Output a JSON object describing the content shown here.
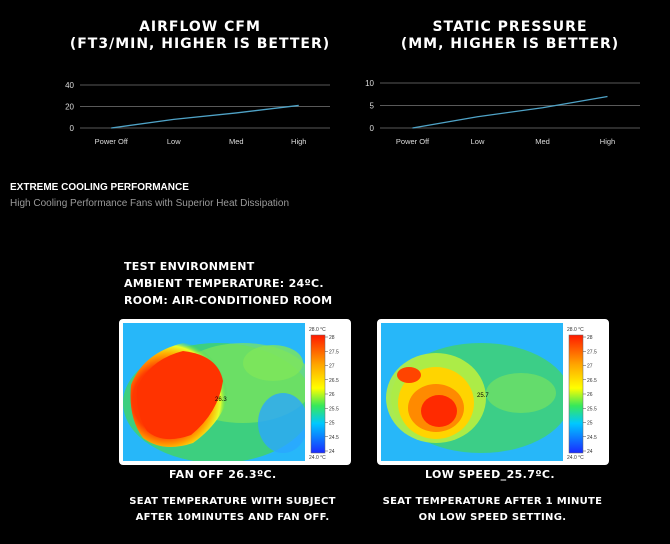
{
  "charts": [
    {
      "title_line1": "AIRFLOW CFM",
      "title_line2": "(FT3/MIN, HIGHER IS BETTER)"
    },
    {
      "title_line1": "STATIC PRESSURE",
      "title_line2": "(MM, HIGHER IS BETTER)"
    }
  ],
  "chart_data": [
    {
      "type": "line",
      "title": "AIRFLOW CFM (FT3/MIN, HIGHER IS BETTER)",
      "categories": [
        "Power Off",
        "Low",
        "Med",
        "High"
      ],
      "values": [
        0,
        8,
        14,
        21
      ],
      "ylim": [
        0,
        40
      ],
      "yticks": [
        "0",
        "20",
        "40"
      ],
      "grid": true,
      "line_color": "#4fa3c7"
    },
    {
      "type": "line",
      "title": "STATIC PRESSURE (MM, HIGHER IS BETTER)",
      "categories": [
        "Power Off",
        "Low",
        "Med",
        "High"
      ],
      "values": [
        0,
        2.5,
        4.5,
        7
      ],
      "ylim": [
        0,
        10
      ],
      "yticks": [
        "0",
        "5",
        "10"
      ],
      "grid": true,
      "line_color": "#4fa3c7"
    }
  ],
  "section": {
    "heading": "EXTREME COOLING PERFORMANCE",
    "subheading": "High Cooling Performance Fans with Superior Heat Dissipation"
  },
  "test_env": {
    "line1": "TEST ENVIRONMENT",
    "line2": "AMBIENT TEMPERATURE: 24ºC.",
    "line3": "ROOM: AIR-CONDITIONED ROOM"
  },
  "thermal_images": [
    {
      "caption": "FAN OFF 26.3ºC.",
      "description": "SEAT TEMPERATURE WITH SUBJECT AFTER 10MINUTES AND FAN OFF.",
      "scale_max": "28.0 °C",
      "scale_min": "24.0 °C",
      "scale_ticks": [
        "28",
        "27.5",
        "27",
        "26.5",
        "26",
        "25.5",
        "25",
        "24.5",
        "24"
      ],
      "marker": "26.3"
    },
    {
      "caption": "LOW SPEED_25.7ºC.",
      "description": "SEAT TEMPERATURE AFTER 1 MINUTE ON LOW SPEED SETTING.",
      "scale_max": "28.0 °C",
      "scale_min": "24.0 °C",
      "scale_ticks": [
        "28",
        "27.5",
        "27",
        "26.5",
        "26",
        "25.5",
        "25",
        "24.5",
        "24"
      ],
      "marker": "25.7"
    }
  ],
  "colors": {
    "background": "#000000",
    "chart_line": "#4fa3c7",
    "gridline": "#777777"
  }
}
